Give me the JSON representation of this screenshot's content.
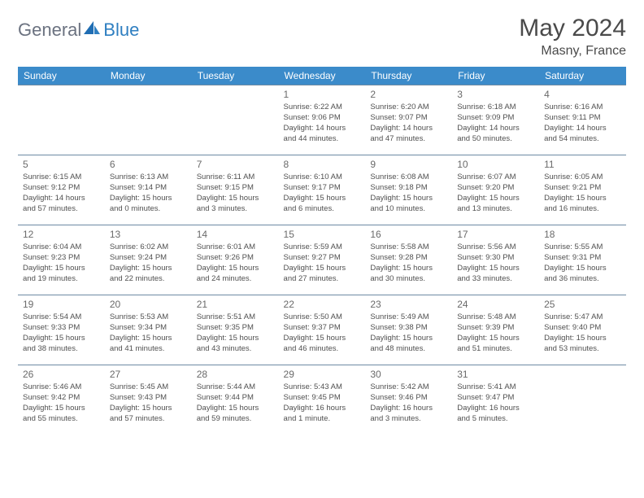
{
  "brand": {
    "part1": "General",
    "part2": "Blue"
  },
  "title": "May 2024",
  "location": "Masny, France",
  "header_bg": "#3b8bca",
  "header_fg": "#ffffff",
  "border_color": "#6d8aa3",
  "days": [
    "Sunday",
    "Monday",
    "Tuesday",
    "Wednesday",
    "Thursday",
    "Friday",
    "Saturday"
  ],
  "weeks": [
    [
      null,
      null,
      null,
      {
        "n": "1",
        "sr": "6:22 AM",
        "ss": "9:06 PM",
        "dl": "14 hours and 44 minutes."
      },
      {
        "n": "2",
        "sr": "6:20 AM",
        "ss": "9:07 PM",
        "dl": "14 hours and 47 minutes."
      },
      {
        "n": "3",
        "sr": "6:18 AM",
        "ss": "9:09 PM",
        "dl": "14 hours and 50 minutes."
      },
      {
        "n": "4",
        "sr": "6:16 AM",
        "ss": "9:11 PM",
        "dl": "14 hours and 54 minutes."
      }
    ],
    [
      {
        "n": "5",
        "sr": "6:15 AM",
        "ss": "9:12 PM",
        "dl": "14 hours and 57 minutes."
      },
      {
        "n": "6",
        "sr": "6:13 AM",
        "ss": "9:14 PM",
        "dl": "15 hours and 0 minutes."
      },
      {
        "n": "7",
        "sr": "6:11 AM",
        "ss": "9:15 PM",
        "dl": "15 hours and 3 minutes."
      },
      {
        "n": "8",
        "sr": "6:10 AM",
        "ss": "9:17 PM",
        "dl": "15 hours and 6 minutes."
      },
      {
        "n": "9",
        "sr": "6:08 AM",
        "ss": "9:18 PM",
        "dl": "15 hours and 10 minutes."
      },
      {
        "n": "10",
        "sr": "6:07 AM",
        "ss": "9:20 PM",
        "dl": "15 hours and 13 minutes."
      },
      {
        "n": "11",
        "sr": "6:05 AM",
        "ss": "9:21 PM",
        "dl": "15 hours and 16 minutes."
      }
    ],
    [
      {
        "n": "12",
        "sr": "6:04 AM",
        "ss": "9:23 PM",
        "dl": "15 hours and 19 minutes."
      },
      {
        "n": "13",
        "sr": "6:02 AM",
        "ss": "9:24 PM",
        "dl": "15 hours and 22 minutes."
      },
      {
        "n": "14",
        "sr": "6:01 AM",
        "ss": "9:26 PM",
        "dl": "15 hours and 24 minutes."
      },
      {
        "n": "15",
        "sr": "5:59 AM",
        "ss": "9:27 PM",
        "dl": "15 hours and 27 minutes."
      },
      {
        "n": "16",
        "sr": "5:58 AM",
        "ss": "9:28 PM",
        "dl": "15 hours and 30 minutes."
      },
      {
        "n": "17",
        "sr": "5:56 AM",
        "ss": "9:30 PM",
        "dl": "15 hours and 33 minutes."
      },
      {
        "n": "18",
        "sr": "5:55 AM",
        "ss": "9:31 PM",
        "dl": "15 hours and 36 minutes."
      }
    ],
    [
      {
        "n": "19",
        "sr": "5:54 AM",
        "ss": "9:33 PM",
        "dl": "15 hours and 38 minutes."
      },
      {
        "n": "20",
        "sr": "5:53 AM",
        "ss": "9:34 PM",
        "dl": "15 hours and 41 minutes."
      },
      {
        "n": "21",
        "sr": "5:51 AM",
        "ss": "9:35 PM",
        "dl": "15 hours and 43 minutes."
      },
      {
        "n": "22",
        "sr": "5:50 AM",
        "ss": "9:37 PM",
        "dl": "15 hours and 46 minutes."
      },
      {
        "n": "23",
        "sr": "5:49 AM",
        "ss": "9:38 PM",
        "dl": "15 hours and 48 minutes."
      },
      {
        "n": "24",
        "sr": "5:48 AM",
        "ss": "9:39 PM",
        "dl": "15 hours and 51 minutes."
      },
      {
        "n": "25",
        "sr": "5:47 AM",
        "ss": "9:40 PM",
        "dl": "15 hours and 53 minutes."
      }
    ],
    [
      {
        "n": "26",
        "sr": "5:46 AM",
        "ss": "9:42 PM",
        "dl": "15 hours and 55 minutes."
      },
      {
        "n": "27",
        "sr": "5:45 AM",
        "ss": "9:43 PM",
        "dl": "15 hours and 57 minutes."
      },
      {
        "n": "28",
        "sr": "5:44 AM",
        "ss": "9:44 PM",
        "dl": "15 hours and 59 minutes."
      },
      {
        "n": "29",
        "sr": "5:43 AM",
        "ss": "9:45 PM",
        "dl": "16 hours and 1 minute."
      },
      {
        "n": "30",
        "sr": "5:42 AM",
        "ss": "9:46 PM",
        "dl": "16 hours and 3 minutes."
      },
      {
        "n": "31",
        "sr": "5:41 AM",
        "ss": "9:47 PM",
        "dl": "16 hours and 5 minutes."
      },
      null
    ]
  ],
  "labels": {
    "sunrise": "Sunrise: ",
    "sunset": "Sunset: ",
    "daylight": "Daylight: "
  }
}
